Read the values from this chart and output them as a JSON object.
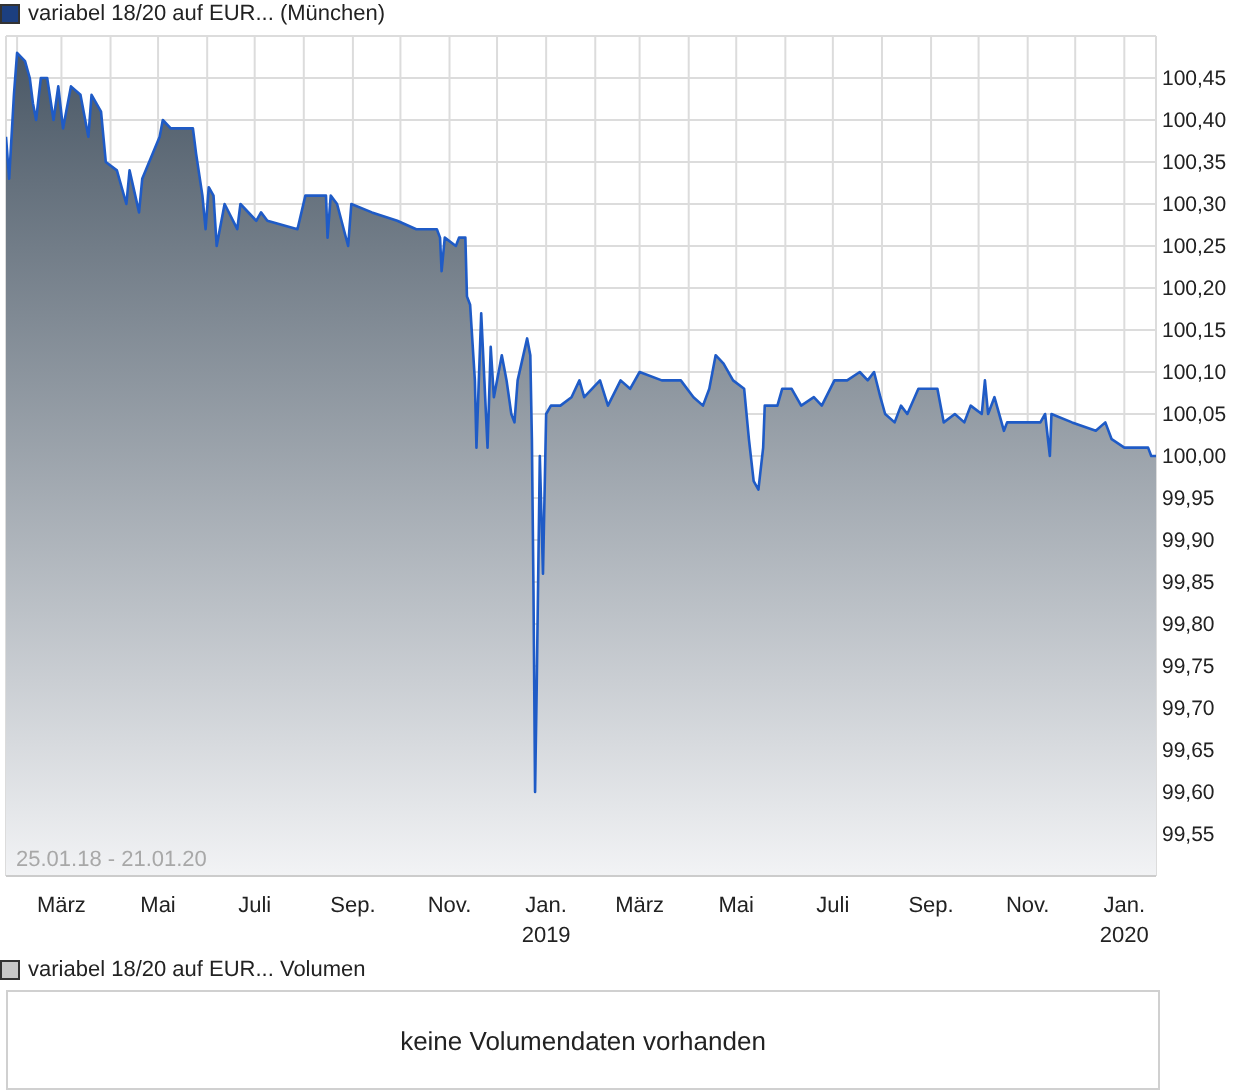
{
  "chart_data": [
    {
      "type": "area",
      "title": "variabel 18/20 auf EUR... (München)",
      "color": "#1f5bc6",
      "x": [
        "2018-01-25",
        "2018-01-27",
        "2018-01-30",
        "2018-02-01",
        "2018-02-06",
        "2018-02-09",
        "2018-02-11",
        "2018-02-13",
        "2018-02-16",
        "2018-02-20",
        "2018-02-24",
        "2018-02-27",
        "2018-03-02",
        "2018-03-07",
        "2018-03-13",
        "2018-03-18",
        "2018-03-20",
        "2018-03-26",
        "2018-03-29",
        "2018-04-05",
        "2018-04-11",
        "2018-04-13",
        "2018-04-19",
        "2018-04-21",
        "2018-05-02",
        "2018-05-04",
        "2018-05-09",
        "2018-05-23",
        "2018-05-25",
        "2018-05-29",
        "2018-05-31",
        "2018-06-02",
        "2018-06-05",
        "2018-06-07",
        "2018-06-12",
        "2018-06-20",
        "2018-06-22",
        "2018-07-02",
        "2018-07-05",
        "2018-07-09",
        "2018-07-28",
        "2018-08-02",
        "2018-08-15",
        "2018-08-16",
        "2018-08-18",
        "2018-08-22",
        "2018-08-29",
        "2018-08-31",
        "2018-09-13",
        "2018-09-29",
        "2018-10-11",
        "2018-10-24",
        "2018-10-26",
        "2018-10-27",
        "2018-10-29",
        "2018-11-05",
        "2018-11-07",
        "2018-11-11",
        "2018-11-12",
        "2018-11-14",
        "2018-11-17",
        "2018-11-18",
        "2018-11-21",
        "2018-11-23",
        "2018-11-25",
        "2018-11-27",
        "2018-11-29",
        "2018-12-04",
        "2018-12-07",
        "2018-12-10",
        "2018-12-12",
        "2018-12-14",
        "2018-12-20",
        "2018-12-22",
        "2018-12-23",
        "2018-12-24",
        "2018-12-25",
        "2018-12-26",
        "2018-12-28",
        "2018-12-30",
        "2019-01-01",
        "2019-01-04",
        "2019-01-10",
        "2019-01-17",
        "2019-01-22",
        "2019-01-25",
        "2019-02-04",
        "2019-02-09",
        "2019-02-17",
        "2019-02-23",
        "2019-03-01",
        "2019-03-15",
        "2019-03-27",
        "2019-04-04",
        "2019-04-10",
        "2019-04-14",
        "2019-04-18",
        "2019-04-23",
        "2019-04-29",
        "2019-05-06",
        "2019-05-09",
        "2019-05-12",
        "2019-05-15",
        "2019-05-18",
        "2019-05-19",
        "2019-05-27",
        "2019-05-30",
        "2019-06-05",
        "2019-06-11",
        "2019-06-19",
        "2019-06-24",
        "2019-07-02",
        "2019-07-10",
        "2019-07-18",
        "2019-07-23",
        "2019-07-27",
        "2019-07-31",
        "2019-08-03",
        "2019-08-09",
        "2019-08-13",
        "2019-08-17",
        "2019-08-24",
        "2019-09-05",
        "2019-09-09",
        "2019-09-16",
        "2019-09-22",
        "2019-09-26",
        "2019-10-03",
        "2019-10-05",
        "2019-10-07",
        "2019-10-11",
        "2019-10-17",
        "2019-10-19",
        "2019-11-01",
        "2019-11-09",
        "2019-11-12",
        "2019-11-15",
        "2019-11-16",
        "2019-11-29",
        "2019-12-14",
        "2019-12-20",
        "2019-12-24",
        "2020-01-01",
        "2020-01-05",
        "2020-01-16",
        "2020-01-18",
        "2020-01-21"
      ],
      "values": [
        100.38,
        100.33,
        100.43,
        100.48,
        100.47,
        100.45,
        100.42,
        100.4,
        100.45,
        100.45,
        100.4,
        100.44,
        100.39,
        100.44,
        100.43,
        100.38,
        100.43,
        100.41,
        100.35,
        100.34,
        100.3,
        100.34,
        100.29,
        100.33,
        100.38,
        100.4,
        100.39,
        100.39,
        100.36,
        100.31,
        100.27,
        100.32,
        100.31,
        100.25,
        100.3,
        100.27,
        100.3,
        100.28,
        100.29,
        100.28,
        100.27,
        100.31,
        100.31,
        100.26,
        100.31,
        100.3,
        100.25,
        100.3,
        100.29,
        100.28,
        100.27,
        100.27,
        100.26,
        100.22,
        100.26,
        100.25,
        100.26,
        100.26,
        100.19,
        100.18,
        100.09,
        100.01,
        100.17,
        100.09,
        100.01,
        100.13,
        100.07,
        100.12,
        100.09,
        100.05,
        100.04,
        100.09,
        100.14,
        100.12,
        100.02,
        99.84,
        99.6,
        99.72,
        100.0,
        99.86,
        100.05,
        100.06,
        100.06,
        100.07,
        100.09,
        100.07,
        100.09,
        100.06,
        100.09,
        100.08,
        100.1,
        100.09,
        100.09,
        100.07,
        100.06,
        100.08,
        100.12,
        100.11,
        100.09,
        100.08,
        100.02,
        99.97,
        99.96,
        100.01,
        100.06,
        100.06,
        100.08,
        100.08,
        100.06,
        100.07,
        100.06,
        100.09,
        100.09,
        100.1,
        100.09,
        100.1,
        100.07,
        100.05,
        100.04,
        100.06,
        100.05,
        100.08,
        100.08,
        100.04,
        100.05,
        100.04,
        100.06,
        100.05,
        100.09,
        100.05,
        100.07,
        100.03,
        100.04,
        100.04,
        100.04,
        100.05,
        100.0,
        100.05,
        100.04,
        100.03,
        100.04,
        100.02,
        100.01,
        100.01,
        100.01,
        100.0,
        100.0
      ],
      "xlim": [
        "2018-01-25",
        "2020-01-21"
      ],
      "xticks": [
        {
          "value": "2018-02-01",
          "label": null
        },
        {
          "value": "2018-03-01",
          "label": "März"
        },
        {
          "value": "2018-04-01",
          "label": null
        },
        {
          "value": "2018-05-01",
          "label": "Mai"
        },
        {
          "value": "2018-06-01",
          "label": null
        },
        {
          "value": "2018-07-01",
          "label": "Juli"
        },
        {
          "value": "2018-08-01",
          "label": null
        },
        {
          "value": "2018-09-01",
          "label": "Sep."
        },
        {
          "value": "2018-10-01",
          "label": null
        },
        {
          "value": "2018-11-01",
          "label": "Nov."
        },
        {
          "value": "2018-12-01",
          "label": null
        },
        {
          "value": "2019-01-01",
          "label": "Jan.\n2019"
        },
        {
          "value": "2019-02-01",
          "label": null
        },
        {
          "value": "2019-03-01",
          "label": "März"
        },
        {
          "value": "2019-04-01",
          "label": null
        },
        {
          "value": "2019-05-01",
          "label": "Mai"
        },
        {
          "value": "2019-06-01",
          "label": null
        },
        {
          "value": "2019-07-01",
          "label": "Juli"
        },
        {
          "value": "2019-08-01",
          "label": null
        },
        {
          "value": "2019-09-01",
          "label": "Sep."
        },
        {
          "value": "2019-10-01",
          "label": null
        },
        {
          "value": "2019-11-01",
          "label": "Nov."
        },
        {
          "value": "2019-12-01",
          "label": null
        },
        {
          "value": "2020-01-01",
          "label": "Jan.\n2020"
        }
      ],
      "ylim": [
        99.5,
        100.5
      ],
      "yticks": [
        {
          "value": 99.55,
          "label": "99,55"
        },
        {
          "value": 99.6,
          "label": "99,60"
        },
        {
          "value": 99.65,
          "label": "99,65"
        },
        {
          "value": 99.7,
          "label": "99,70"
        },
        {
          "value": 99.75,
          "label": "99,75"
        },
        {
          "value": 99.8,
          "label": "99,80"
        },
        {
          "value": 99.85,
          "label": "99,85"
        },
        {
          "value": 99.9,
          "label": "99,90"
        },
        {
          "value": 99.95,
          "label": "99,95"
        },
        {
          "value": 100.0,
          "label": "100,00"
        },
        {
          "value": 100.05,
          "label": "100,05"
        },
        {
          "value": 100.1,
          "label": "100,10"
        },
        {
          "value": 100.15,
          "label": "100,15"
        },
        {
          "value": 100.2,
          "label": "100,20"
        },
        {
          "value": 100.25,
          "label": "100,25"
        },
        {
          "value": 100.3,
          "label": "100,30"
        },
        {
          "value": 100.35,
          "label": "100,35"
        },
        {
          "value": 100.4,
          "label": "100,40"
        },
        {
          "value": 100.45,
          "label": "100,45"
        }
      ],
      "grid": true,
      "annotations": [
        "25.01.18 - 21.01.20"
      ]
    },
    {
      "type": "other",
      "title": "variabel 18/20 auf EUR... Volumen",
      "annotations": [
        "keine Volumendaten vorhanden"
      ]
    }
  ]
}
